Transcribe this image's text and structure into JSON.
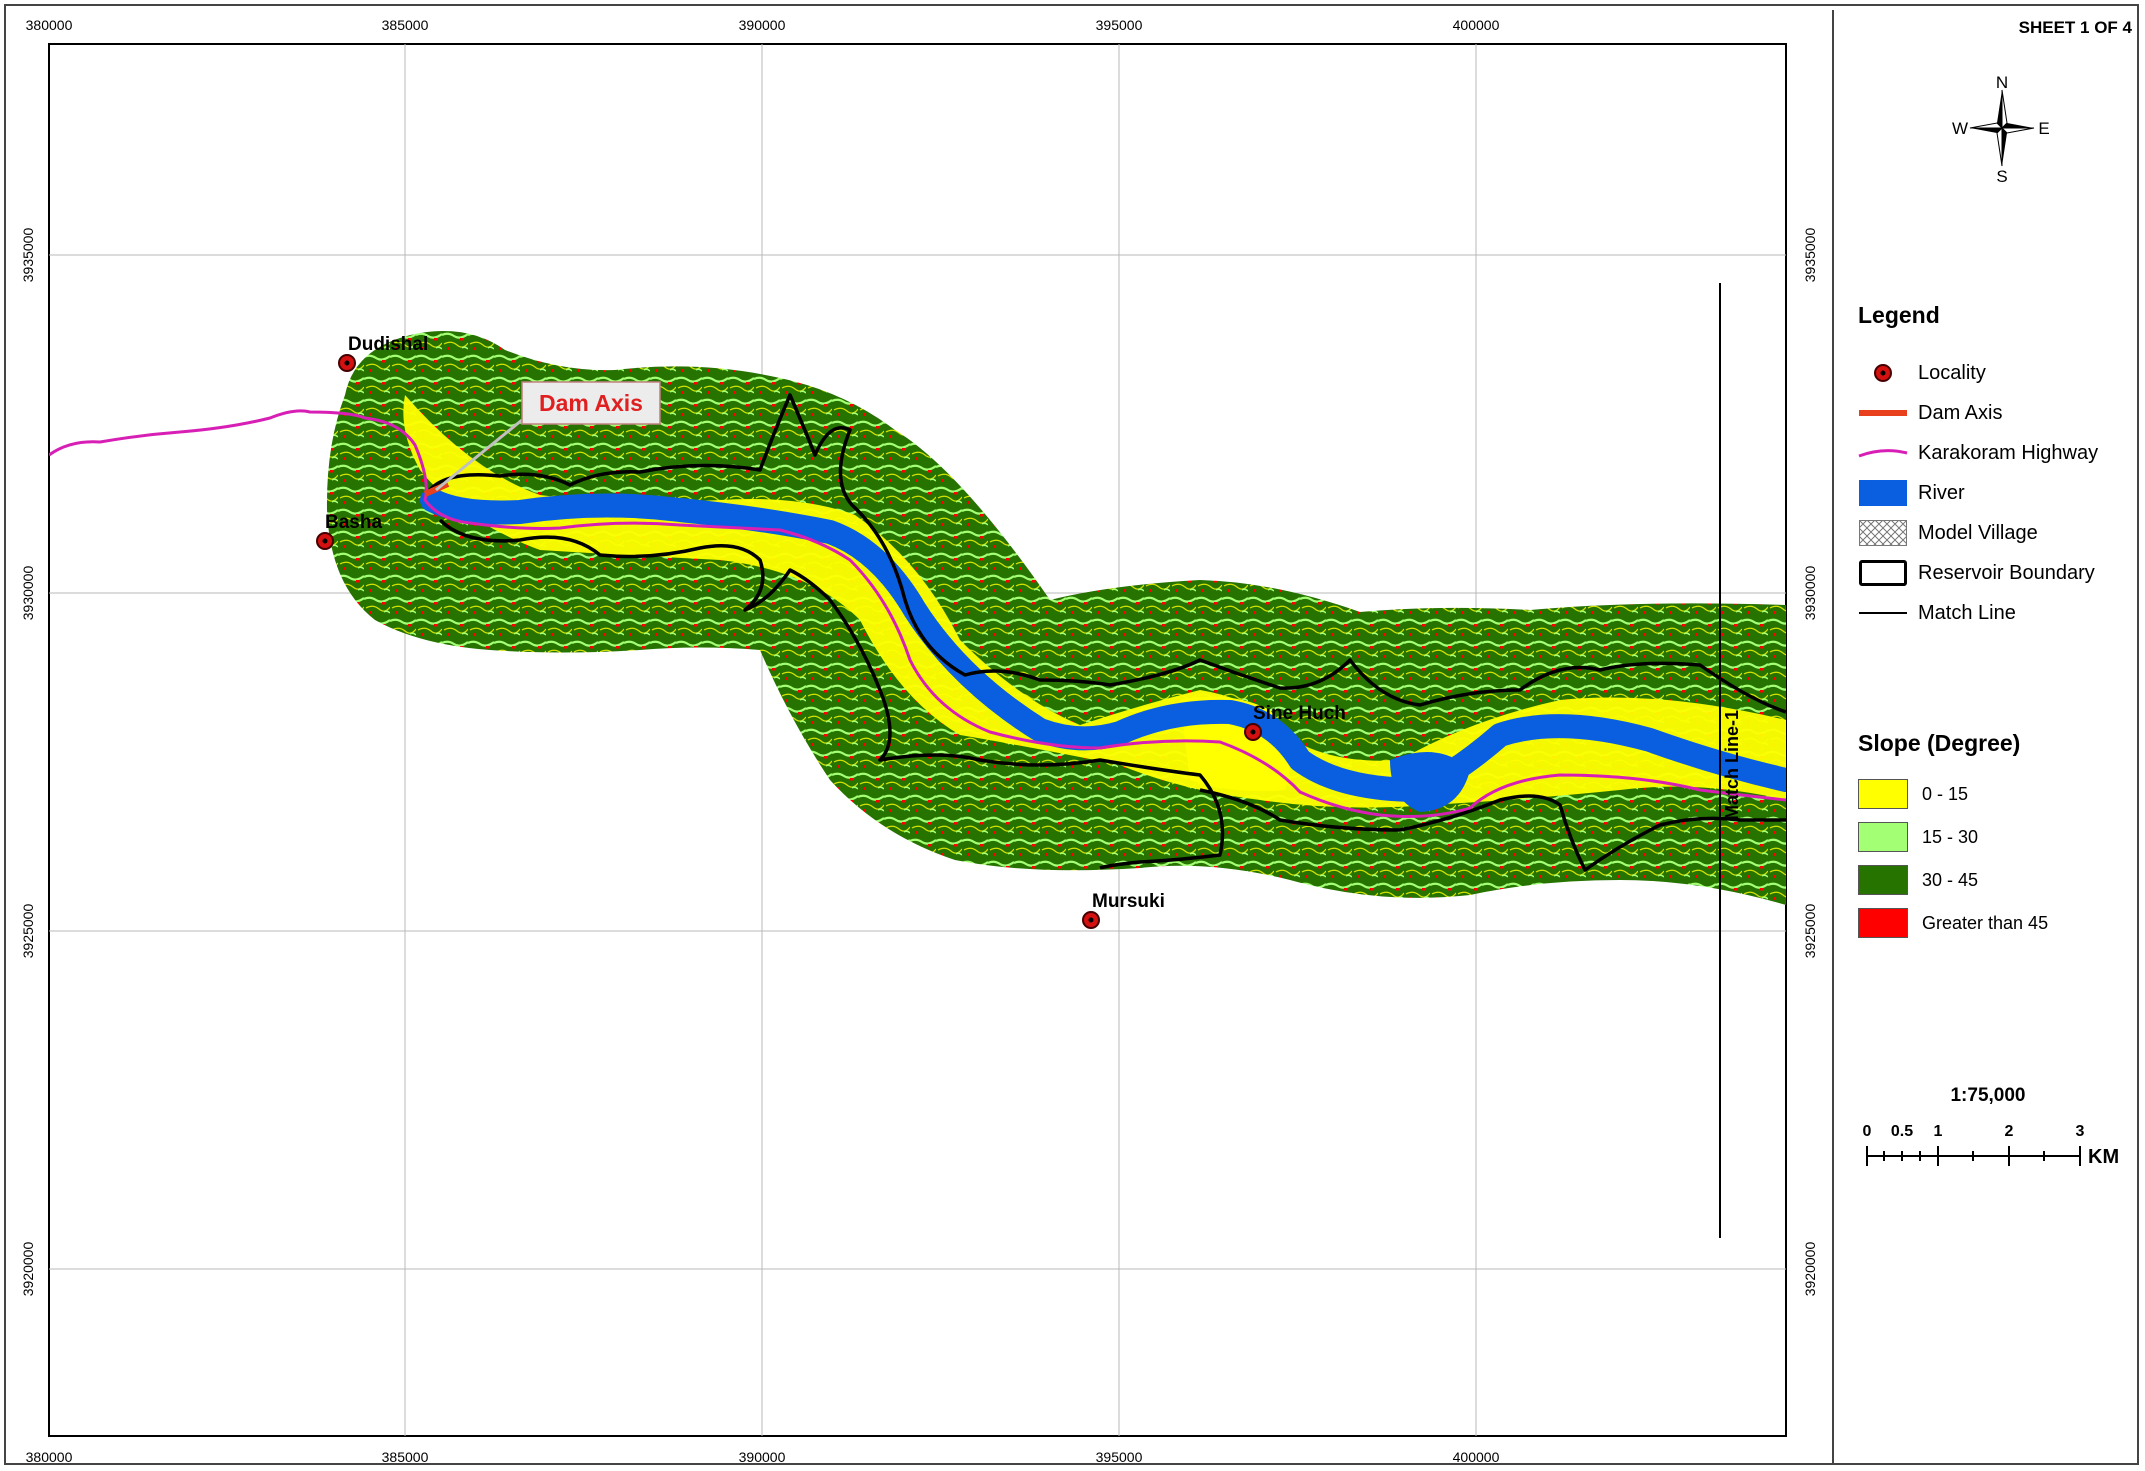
{
  "sheet": "SHEET 1 OF 4",
  "north_arrow": {
    "n": "N",
    "s": "S",
    "e": "E",
    "w": "W"
  },
  "axes": {
    "x_ticks": [
      "380000",
      "385000",
      "390000",
      "395000",
      "400000"
    ],
    "y_ticks": [
      "3935000",
      "3930000",
      "3925000",
      "3920000"
    ]
  },
  "localities": [
    {
      "name": "Dudishal"
    },
    {
      "name": "Basha"
    },
    {
      "name": "Sine Huch"
    },
    {
      "name": "Mursuki"
    }
  ],
  "dam_axis_label": "Dam Axis",
  "match_line_label": "Match Line-1",
  "legend": {
    "title": "Legend",
    "items": [
      {
        "label": "Locality",
        "icon": "locality-dot-icon"
      },
      {
        "label": "Dam Axis",
        "color": "#e8401c"
      },
      {
        "label": "Karakoram Highway",
        "color": "#d81fb5"
      },
      {
        "label": "River",
        "color": "#0a5fe0"
      },
      {
        "label": "Model Village",
        "icon": "crosshatch-icon"
      },
      {
        "label": "Reservoir Boundary"
      },
      {
        "label": "Match Line"
      }
    ]
  },
  "slope": {
    "title": "Slope (Degree)",
    "classes": [
      {
        "label": "0 - 15",
        "color": "#ffff00"
      },
      {
        "label": "15 - 30",
        "color": "#a3ff73"
      },
      {
        "label": "30 - 45",
        "color": "#267300"
      },
      {
        "label": "Greater than 45",
        "color": "#ff0000"
      }
    ]
  },
  "scale": {
    "ratio": "1:75,000",
    "ticks": [
      "0",
      "0.5",
      "1",
      "2",
      "3"
    ],
    "unit": "KM"
  }
}
